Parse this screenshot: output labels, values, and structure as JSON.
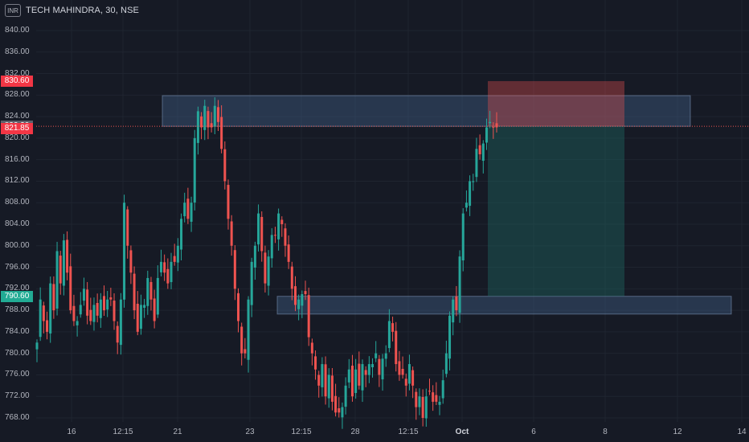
{
  "header": {
    "currency_label": "INR",
    "symbol_title": "TECH MAHINDRA, 30, NSE"
  },
  "colors": {
    "bg": "#161a25",
    "up": "#26a69a",
    "down": "#ef5350",
    "zone": "#3d5a80",
    "stop": "#ef5350",
    "target": "#1f6b64"
  },
  "price_tags": [
    {
      "value": "830.60",
      "color": "#f23645"
    },
    {
      "value": "822.20",
      "color": "#5d606b"
    },
    {
      "value": "821.85",
      "color": "#f23645"
    },
    {
      "value": "790.60",
      "color": "#22ab94"
    }
  ],
  "chart_data": {
    "type": "candlestick",
    "title": "TECH MAHINDRA, 30, NSE",
    "y_ticks": [
      "840.00",
      "836.00",
      "832.00",
      "828.00",
      "824.00",
      "820.00",
      "816.00",
      "812.00",
      "808.00",
      "804.00",
      "800.00",
      "796.00",
      "792.00",
      "788.00",
      "784.00",
      "780.00",
      "776.00",
      "772.00",
      "768.00"
    ],
    "x_ticks": [
      {
        "label": "16",
        "bold": false
      },
      {
        "label": "12:15",
        "bold": false
      },
      {
        "label": "21",
        "bold": false
      },
      {
        "label": "23",
        "bold": false
      },
      {
        "label": "12:15",
        "bold": false
      },
      {
        "label": "28",
        "bold": false
      },
      {
        "label": "12:15",
        "bold": false
      },
      {
        "label": "Oct",
        "bold": true
      },
      {
        "label": "6",
        "bold": false
      },
      {
        "label": "8",
        "bold": false
      },
      {
        "label": "12",
        "bold": false
      },
      {
        "label": "14",
        "bold": false
      }
    ],
    "ylim": [
      767,
      842
    ],
    "last_price": 822.2,
    "supply_zone": [
      822.2,
      827.9
    ],
    "demand_zone": [
      787.3,
      790.6
    ],
    "trade": {
      "entry": 822.2,
      "stop": 830.6,
      "target": 790.6
    },
    "segments": [
      {
        "n": 12,
        "y": [
          782,
          790,
          786,
          784,
          793,
          788,
          799,
          793,
          801,
          795,
          788,
          786
        ]
      },
      {
        "n": 10,
        "y": [
          786,
          789,
          792,
          787,
          786,
          789,
          787,
          790,
          788,
          790
        ]
      },
      {
        "n": 10,
        "y": [
          790,
          786,
          782,
          790,
          808,
          800,
          795,
          788,
          784,
          789
        ]
      },
      {
        "n": 9,
        "y": [
          789,
          794,
          790,
          786,
          794,
          797,
          795,
          793,
          797
        ]
      },
      {
        "n": 11,
        "y": [
          797,
          800,
          805,
          808,
          805,
          808,
          820,
          825,
          822,
          826,
          822
        ]
      },
      {
        "n": 10,
        "y": [
          822,
          826,
          823,
          818,
          812,
          805,
          800,
          792,
          786,
          780
        ]
      },
      {
        "n": 9,
        "y": [
          780,
          790,
          797,
          800,
          806,
          799,
          793,
          798,
          802
        ]
      },
      {
        "n": 9,
        "y": [
          802,
          806,
          804,
          800,
          797,
          792,
          789,
          790,
          791
        ]
      },
      {
        "n": 10,
        "y": [
          791,
          783,
          780,
          777,
          774,
          778,
          772,
          776,
          771,
          769
        ]
      },
      {
        "n": 10,
        "y": [
          769,
          770,
          774,
          777,
          772,
          777,
          774,
          778,
          776,
          778
        ]
      },
      {
        "n": 9,
        "y": [
          778,
          780,
          776,
          779,
          780,
          786,
          784,
          778,
          776
        ]
      },
      {
        "n": 11,
        "y": [
          776,
          774,
          778,
          774,
          770,
          772,
          768,
          772,
          773,
          771,
          771
        ]
      },
      {
        "n": 10,
        "y": [
          771,
          775,
          780,
          787,
          790,
          788,
          798,
          806,
          808,
          812
        ]
      },
      {
        "n": 8,
        "y": [
          812,
          818,
          817,
          819,
          822,
          823,
          822,
          822
        ]
      }
    ]
  }
}
